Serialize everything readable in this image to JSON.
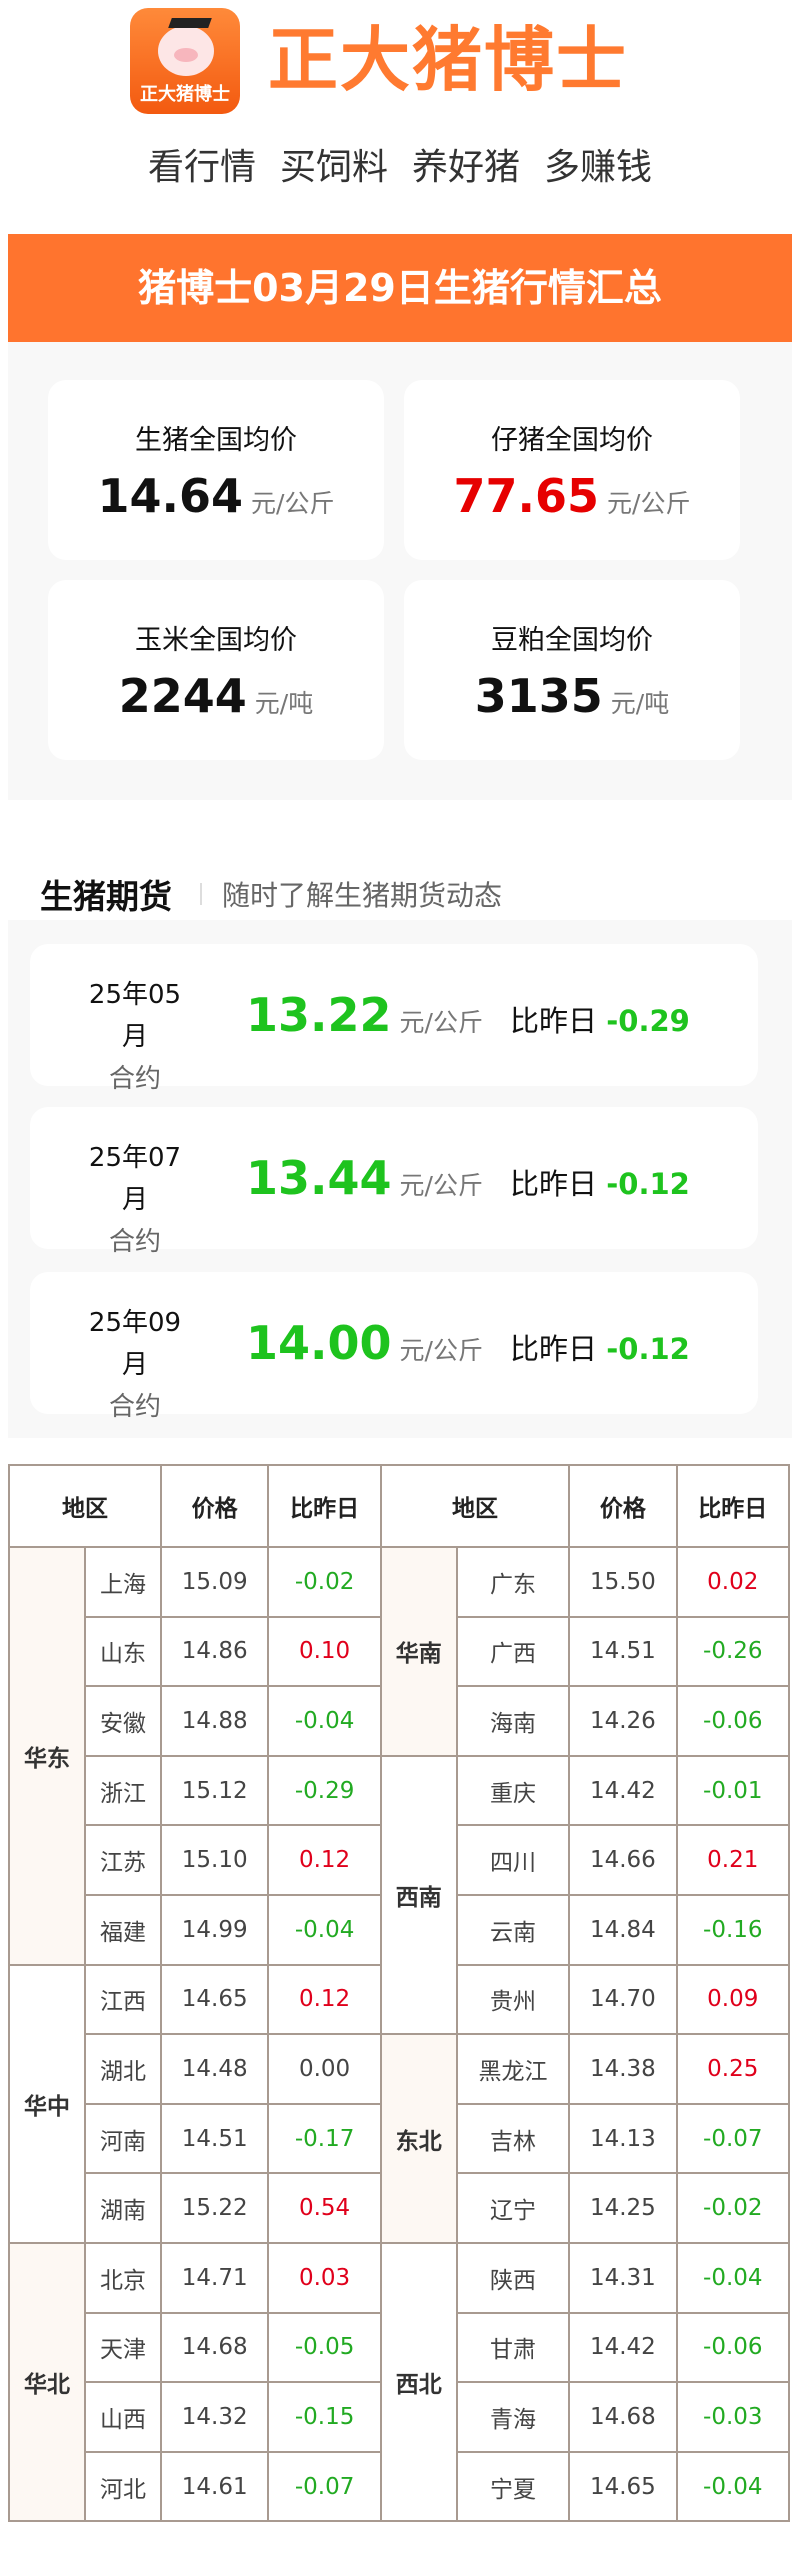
{
  "header": {
    "logo_text": "正大猪博士",
    "brand": "正大猪博士",
    "slogans": [
      "看行情",
      "买饲料",
      "养好猪",
      "多赚钱"
    ]
  },
  "banner": {
    "title": "猪博士03月29日生猪行情汇总"
  },
  "national": [
    {
      "label": "生猪全国均价",
      "value": "14.64",
      "unit": "元/公斤",
      "color": "#111111"
    },
    {
      "label": "仔猪全国均价",
      "value": "77.65",
      "unit": "元/公斤",
      "color": "#e60000"
    },
    {
      "label": "玉米全国均价",
      "value": "2244",
      "unit": "元/吨",
      "color": "#111111"
    },
    {
      "label": "豆粕全国均价",
      "value": "3135",
      "unit": "元/吨",
      "color": "#111111"
    }
  ],
  "futures": {
    "title": "生猪期货",
    "subtitle": "随时了解生猪期货动态",
    "items": [
      {
        "month": "25年05月",
        "contract": "合约",
        "price": "13.22",
        "unit": "元/公斤",
        "diff_label": "比昨日",
        "diff": "-0.29"
      },
      {
        "month": "25年07月",
        "contract": "合约",
        "price": "13.44",
        "unit": "元/公斤",
        "diff_label": "比昨日",
        "diff": "-0.12"
      },
      {
        "month": "25年09月",
        "contract": "合约",
        "price": "14.00",
        "unit": "元/公斤",
        "diff_label": "比昨日",
        "diff": "-0.12"
      }
    ]
  },
  "table": {
    "headers": [
      "地区",
      "价格",
      "比昨日",
      "地区",
      "价格",
      "比昨日"
    ],
    "left": [
      {
        "region": "华东",
        "rows": [
          [
            "上海",
            "15.09",
            "-0.02"
          ],
          [
            "山东",
            "14.86",
            "0.10"
          ],
          [
            "安徽",
            "14.88",
            "-0.04"
          ],
          [
            "浙江",
            "15.12",
            "-0.29"
          ],
          [
            "江苏",
            "15.10",
            "0.12"
          ],
          [
            "福建",
            "14.99",
            "-0.04"
          ]
        ],
        "shaded": true
      },
      {
        "region": "华中",
        "rows": [
          [
            "江西",
            "14.65",
            "0.12"
          ],
          [
            "湖北",
            "14.48",
            "0.00"
          ],
          [
            "河南",
            "14.51",
            "-0.17"
          ],
          [
            "湖南",
            "15.22",
            "0.54"
          ]
        ],
        "shaded": false
      },
      {
        "region": "华北",
        "rows": [
          [
            "北京",
            "14.71",
            "0.03"
          ],
          [
            "天津",
            "14.68",
            "-0.05"
          ],
          [
            "山西",
            "14.32",
            "-0.15"
          ],
          [
            "河北",
            "14.61",
            "-0.07"
          ]
        ],
        "shaded": true
      }
    ],
    "right": [
      {
        "region": "华南",
        "rows": [
          [
            "广东",
            "15.50",
            "0.02"
          ],
          [
            "广西",
            "14.51",
            "-0.26"
          ],
          [
            "海南",
            "14.26",
            "-0.06"
          ]
        ],
        "shaded": true
      },
      {
        "region": "西南",
        "rows": [
          [
            "重庆",
            "14.42",
            "-0.01"
          ],
          [
            "四川",
            "14.66",
            "0.21"
          ],
          [
            "云南",
            "14.84",
            "-0.16"
          ],
          [
            "贵州",
            "14.70",
            "0.09"
          ]
        ],
        "shaded": false
      },
      {
        "region": "东北",
        "rows": [
          [
            "黑龙江",
            "14.38",
            "0.25"
          ],
          [
            "吉林",
            "14.13",
            "-0.07"
          ],
          [
            "辽宁",
            "14.25",
            "-0.02"
          ]
        ],
        "shaded": true
      },
      {
        "region": "西北",
        "rows": [
          [
            "陕西",
            "14.31",
            "-0.04"
          ],
          [
            "甘肃",
            "14.42",
            "-0.06"
          ],
          [
            "青海",
            "14.68",
            "-0.03"
          ],
          [
            "宁夏",
            "14.65",
            "-0.04"
          ]
        ],
        "shaded": false
      }
    ]
  },
  "colors": {
    "brand": "#ff742e",
    "up": "#e0001b",
    "down": "#22aa22",
    "futures_green": "#1ec31e"
  }
}
